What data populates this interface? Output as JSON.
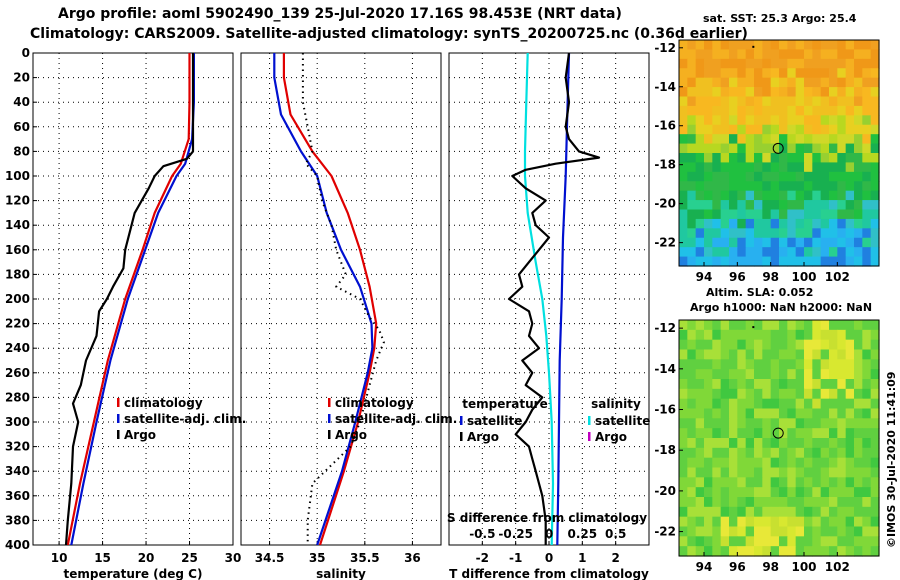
{
  "header": {
    "title_line1": "Argo profile: aoml 5902490_139 25-Jul-2020 17.16S 98.453E (NRT data)",
    "title_line2": "Climatology: CARS2009. Satellite-adjusted climatology: synTS_20200725.nc (0.36d earlier)"
  },
  "colors": {
    "climatology": "#e00000",
    "satellite": "#0010d0",
    "argo": "#000000",
    "sat_salinity": "#00e0e0",
    "argo_salinity": "#c000c0"
  },
  "chart_data": [
    {
      "type": "line",
      "id": "temperature",
      "xlabel": "temperature (deg C)",
      "ylabel": "",
      "xlim": [
        7,
        30
      ],
      "ylim": [
        400,
        0
      ],
      "xticks": [
        10,
        15,
        20,
        25,
        30
      ],
      "yticks": [
        0,
        20,
        40,
        60,
        80,
        100,
        120,
        140,
        160,
        180,
        200,
        220,
        240,
        260,
        280,
        300,
        320,
        340,
        360,
        380,
        400
      ],
      "grid": true,
      "legend": [
        "climatology",
        "satellite-adj. clim.",
        "Argo"
      ],
      "legend_position": "lower-right",
      "series": [
        {
          "name": "climatology",
          "depth": [
            0,
            40,
            70,
            90,
            100,
            130,
            160,
            200,
            250,
            300,
            350,
            400
          ],
          "values": [
            25.0,
            25.0,
            24.9,
            24.0,
            23.0,
            21.0,
            19.6,
            17.6,
            15.6,
            14.0,
            12.4,
            11.0
          ]
        },
        {
          "name": "satellite-adj. clim.",
          "depth": [
            0,
            40,
            70,
            90,
            100,
            130,
            160,
            200,
            250,
            300,
            350,
            400
          ],
          "values": [
            25.5,
            25.5,
            25.3,
            24.5,
            23.5,
            21.4,
            19.9,
            17.9,
            15.9,
            14.3,
            12.8,
            11.4
          ]
        },
        {
          "name": "Argo",
          "depth": [
            0,
            50,
            80,
            86,
            92,
            100,
            110,
            130,
            160,
            175,
            190,
            200,
            210,
            230,
            250,
            270,
            285,
            300,
            320,
            350,
            380,
            400
          ],
          "values": [
            25.4,
            25.4,
            25.4,
            24.7,
            22.0,
            21.0,
            20.3,
            18.7,
            17.6,
            17.4,
            16.2,
            15.5,
            14.6,
            14.3,
            13.1,
            12.5,
            11.6,
            12.2,
            11.6,
            11.4,
            11.0,
            10.8
          ]
        }
      ]
    },
    {
      "type": "line",
      "id": "salinity",
      "xlabel": "salinity",
      "ylabel": "",
      "xlim": [
        34.2,
        36.3
      ],
      "ylim": [
        400,
        0
      ],
      "xticks": [
        34.5,
        35,
        35.5,
        36
      ],
      "grid": true,
      "legend": [
        "climatology",
        "satellite-adj. clim.",
        "Argo"
      ],
      "legend_position": "lower-right",
      "series": [
        {
          "name": "climatology",
          "depth": [
            0,
            20,
            50,
            80,
            100,
            130,
            160,
            190,
            220,
            240,
            260,
            300,
            340,
            400
          ],
          "values": [
            34.65,
            34.65,
            34.72,
            34.95,
            35.15,
            35.32,
            35.45,
            35.55,
            35.62,
            35.6,
            35.55,
            35.43,
            35.28,
            35.03
          ]
        },
        {
          "name": "satellite-adj. clim.",
          "depth": [
            0,
            20,
            50,
            80,
            100,
            130,
            160,
            190,
            220,
            240,
            260,
            300,
            340,
            400
          ],
          "values": [
            34.55,
            34.55,
            34.62,
            34.83,
            35.0,
            35.1,
            35.25,
            35.45,
            35.57,
            35.58,
            35.53,
            35.4,
            35.26,
            35.0
          ]
        },
        {
          "name": "Argo",
          "style": "dotted",
          "depth": [
            0,
            40,
            60,
            80,
            90,
            100,
            120,
            140,
            160,
            180,
            190,
            200,
            215,
            225,
            235,
            250,
            270,
            300,
            320,
            350,
            380,
            400
          ],
          "values": [
            34.85,
            34.85,
            34.9,
            34.95,
            34.88,
            35.0,
            35.05,
            35.15,
            35.2,
            35.3,
            35.2,
            35.45,
            35.55,
            35.65,
            35.7,
            35.62,
            35.55,
            35.45,
            35.35,
            34.95,
            34.9,
            34.9
          ]
        }
      ]
    },
    {
      "type": "line",
      "id": "difference",
      "xlabel": "T difference from climatology",
      "xlabel_top": "S difference from climatology",
      "xlim": [
        -3,
        3
      ],
      "ylim": [
        400,
        0
      ],
      "xticks": [
        -2,
        -1,
        0,
        1,
        2
      ],
      "xticks_S": [
        -0.5,
        -0.25,
        0,
        0.25,
        0.5
      ],
      "s_scale": 4,
      "grid": true,
      "legend_temperature_title": "temperature",
      "legend_salinity_title": "salinity",
      "legend_temperature": [
        "satellite",
        "Argo"
      ],
      "legend_salinity": [
        "satellite",
        "Argo"
      ],
      "series": [
        {
          "name": "T satellite",
          "depth": [
            0,
            50,
            100,
            150,
            200,
            250,
            300,
            350,
            400
          ],
          "values": [
            0.6,
            0.55,
            0.5,
            0.42,
            0.38,
            0.32,
            0.3,
            0.28,
            0.25
          ]
        },
        {
          "name": "Argo T",
          "depth": [
            0,
            20,
            40,
            60,
            70,
            80,
            85,
            90,
            95,
            100,
            110,
            120,
            130,
            140,
            150,
            160,
            170,
            180,
            190,
            200,
            210,
            220,
            230,
            240,
            250,
            260,
            270,
            280,
            290,
            300,
            310,
            320,
            330,
            340,
            350,
            360,
            380,
            400
          ],
          "values": [
            0.6,
            0.5,
            0.6,
            0.5,
            0.6,
            0.9,
            1.5,
            0.2,
            -0.7,
            -1.1,
            -0.7,
            -0.1,
            -0.5,
            -0.4,
            0.0,
            -0.3,
            -0.6,
            -0.9,
            -0.8,
            -1.2,
            -0.6,
            -0.5,
            -0.6,
            -0.3,
            -0.8,
            -0.5,
            -0.7,
            -0.2,
            -0.5,
            -0.7,
            -1.0,
            -0.6,
            -0.5,
            -0.4,
            -0.3,
            -0.2,
            -0.1,
            -0.1
          ]
        },
        {
          "name": "S satellite",
          "depth": [
            0,
            40,
            80,
            100,
            130,
            170,
            200,
            230,
            260,
            300,
            350,
            400
          ],
          "values": [
            -0.16,
            -0.17,
            -0.18,
            -0.18,
            -0.16,
            -0.1,
            -0.05,
            -0.02,
            0.0,
            0.02,
            0.03,
            0.02
          ]
        }
      ]
    },
    {
      "type": "heatmap",
      "id": "sst_map",
      "title": "sat. SST: 25.3 Argo: 25.4",
      "xticks": [
        94,
        96,
        98,
        100,
        102
      ],
      "yticks": [
        -12,
        -14,
        -16,
        -18,
        -20,
        -22
      ],
      "xlim": [
        92.5,
        104.5
      ],
      "ylim": [
        -23.2,
        -11.6
      ],
      "marker": [
        98.453,
        -17.16
      ]
    },
    {
      "type": "heatmap",
      "id": "sla_map",
      "title": "Altim. SLA: 0.052",
      "subtitle": "Argo h1000: NaN h2000: NaN",
      "xticks": [
        94,
        96,
        98,
        100,
        102
      ],
      "yticks": [
        -12,
        -14,
        -16,
        -18,
        -20,
        -22
      ],
      "xlim": [
        92.5,
        104.5
      ],
      "ylim": [
        -23.2,
        -11.6
      ],
      "marker": [
        98.453,
        -17.16
      ]
    }
  ],
  "footer": {
    "stamp": "©IMOS 30-Jul-2020 11:41:09"
  }
}
